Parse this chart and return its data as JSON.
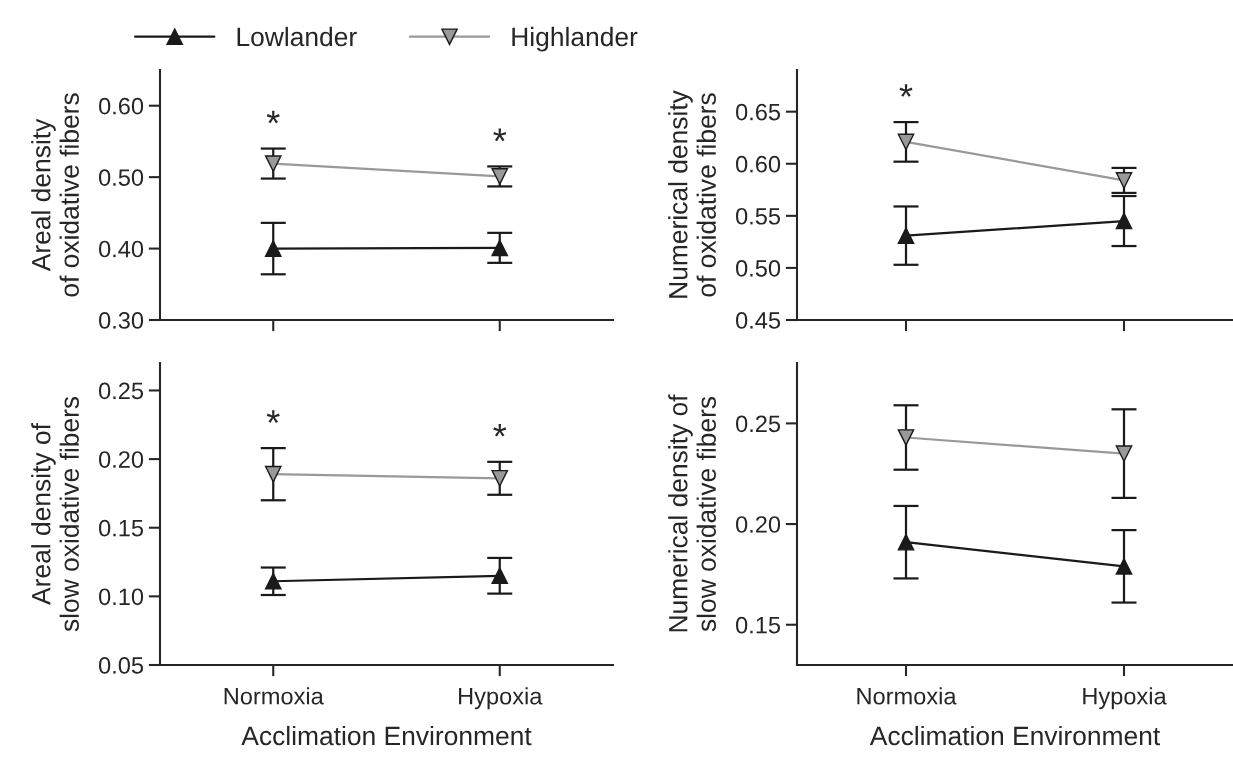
{
  "chart_data": [
    {
      "type": "line",
      "ylabel": "Areal density\nof oxidative fibers",
      "categories": [
        null,
        null
      ],
      "ylim": [
        0.3,
        0.65
      ],
      "yticks": [
        {
          "value": 0.3,
          "label": "0.30"
        },
        {
          "value": 0.4,
          "label": "0.40"
        },
        {
          "value": 0.5,
          "label": "0.50"
        },
        {
          "value": 0.6,
          "label": "0.60"
        }
      ],
      "tick_labels": "y",
      "legend": "top",
      "series": [
        {
          "name": "Lowlander",
          "color": "#1a1a1a",
          "marker": "triangle",
          "values": [
            0.4,
            0.401
          ],
          "errors": [
            0.036,
            0.021
          ]
        },
        {
          "name": "Highlander",
          "color": "#999999",
          "marker": "triangle_down",
          "values": [
            0.519,
            0.501
          ],
          "errors": [
            0.021,
            0.014
          ]
        }
      ],
      "annotations": [
        "*",
        "*"
      ]
    },
    {
      "type": "line",
      "ylabel": "Numerical density\nof oxidative fibers",
      "categories": [
        null,
        null
      ],
      "ylim": [
        0.45,
        0.69
      ],
      "yticks": [
        {
          "value": 0.45,
          "label": "0.45"
        },
        {
          "value": 0.5,
          "label": "0.50"
        },
        {
          "value": 0.55,
          "label": "0.55"
        },
        {
          "value": 0.6,
          "label": "0.60"
        },
        {
          "value": 0.65,
          "label": "0.65"
        }
      ],
      "tick_labels": "y",
      "series": [
        {
          "color": "#1a1a1a",
          "marker": "triangle",
          "values": [
            0.531,
            0.545
          ],
          "errors": [
            0.028,
            0.024
          ]
        },
        {
          "color": "#999999",
          "marker": "triangle_down",
          "values": [
            0.621,
            0.584
          ],
          "errors": [
            0.019,
            0.012
          ]
        }
      ],
      "annotations": [
        "*"
      ]
    },
    {
      "type": "line",
      "xlabel": "Acclimation Environment",
      "ylabel": "Areal density of\nslow oxidative fibers",
      "categories": [
        "Normoxia",
        "Hypoxia"
      ],
      "ylim": [
        0.05,
        0.27
      ],
      "yticks": [
        {
          "value": 0.05,
          "label": "0.05"
        },
        {
          "value": 0.1,
          "label": "0.10"
        },
        {
          "value": 0.15,
          "label": "0.15"
        },
        {
          "value": 0.2,
          "label": "0.20"
        },
        {
          "value": 0.25,
          "label": "0.25"
        }
      ],
      "series": [
        {
          "color": "#1a1a1a",
          "marker": "triangle",
          "values": [
            0.111,
            0.115
          ],
          "errors": [
            0.01,
            0.013
          ]
        },
        {
          "color": "#999999",
          "marker": "triangle_down",
          "values": [
            0.189,
            0.186
          ],
          "errors": [
            0.019,
            0.012
          ]
        }
      ],
      "annotations": [
        "*",
        "*"
      ]
    },
    {
      "type": "line",
      "xlabel": "Acclimation Environment",
      "ylabel": "Numerical density of\nslow oxidative fibers",
      "categories": [
        "Normoxia",
        "Hypoxia"
      ],
      "ylim": [
        0.13,
        0.28
      ],
      "yticks": [
        {
          "value": 0.15,
          "label": "0.15"
        },
        {
          "value": 0.2,
          "label": "0.20"
        },
        {
          "value": 0.25,
          "label": "0.25"
        }
      ],
      "series": [
        {
          "color": "#1a1a1a",
          "marker": "triangle",
          "values": [
            0.191,
            0.179
          ],
          "errors": [
            0.018,
            0.018
          ]
        },
        {
          "color": "#999999",
          "marker": "triangle_down",
          "values": [
            0.243,
            0.235
          ],
          "errors": [
            0.016,
            0.022
          ]
        }
      ]
    }
  ]
}
